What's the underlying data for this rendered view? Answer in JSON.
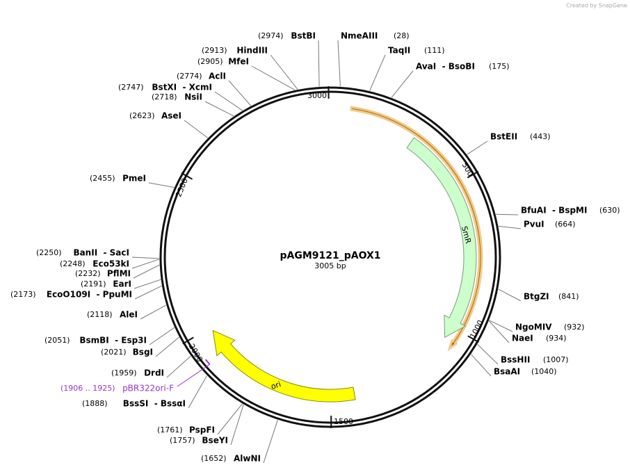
{
  "credit": "Created by SnapGene",
  "title": "pAGM9121_pAOX1",
  "size": "3005 bp",
  "ring_ticks": [
    3000,
    500,
    1000,
    1500,
    2000,
    2500
  ],
  "features": [
    {
      "label": "SmR"
    },
    {
      "label": "ori"
    }
  ],
  "primers": [
    {
      "name": "pBR322ori-F",
      "pos": "(1906 .. 1925)"
    }
  ],
  "sites": [
    {
      "name": "NmeAIII",
      "pos": "(28)"
    },
    {
      "name": "TaqII",
      "pos": "(111)"
    },
    {
      "name": "AvaI  - BsoBI",
      "pos": "(175)"
    },
    {
      "name": "BstEII",
      "pos": "(443)"
    },
    {
      "name": "BfuAI  - BspMI",
      "pos": "(630)"
    },
    {
      "name": "PvuI",
      "pos": "(664)"
    },
    {
      "name": "BtgZI",
      "pos": "(841)"
    },
    {
      "name": "NgoMIV",
      "pos": "(932)"
    },
    {
      "name": "NaeI",
      "pos": "(934)"
    },
    {
      "name": "BssHII",
      "pos": "(1007)"
    },
    {
      "name": "BsaAI",
      "pos": "(1040)"
    },
    {
      "name": "AlwNI",
      "pos": "(1652)"
    },
    {
      "name": "BseYI",
      "pos": "(1757)"
    },
    {
      "name": "PspFI",
      "pos": "(1761)"
    },
    {
      "name": "BssSI  - BssαI",
      "pos": "(1888)"
    },
    {
      "name": "DrdI",
      "pos": "(1959)"
    },
    {
      "name": "BsgI",
      "pos": "(2021)"
    },
    {
      "name": "BsmBI  - Esp3I",
      "pos": "(2051)"
    },
    {
      "name": "AleI",
      "pos": "(2118)"
    },
    {
      "name": "EcoO109I  - PpuMI",
      "pos": "(2173)"
    },
    {
      "name": "EarI",
      "pos": "(2191)"
    },
    {
      "name": "PflMI",
      "pos": "(2232)"
    },
    {
      "name": "Eco53kI",
      "pos": "(2248)"
    },
    {
      "name": "BanII  - SacI",
      "pos": "(2250)"
    },
    {
      "name": "PmeI",
      "pos": "(2455)"
    },
    {
      "name": "AseI",
      "pos": "(2623)"
    },
    {
      "name": "NsiI",
      "pos": "(2718)"
    },
    {
      "name": "BstXI  - XcmI",
      "pos": "(2747)"
    },
    {
      "name": "AclI",
      "pos": "(2774)"
    },
    {
      "name": "MfeI",
      "pos": "(2905)"
    },
    {
      "name": "HindIII",
      "pos": "(2913)"
    },
    {
      "name": "BstBI",
      "pos": "(2974)"
    }
  ]
}
